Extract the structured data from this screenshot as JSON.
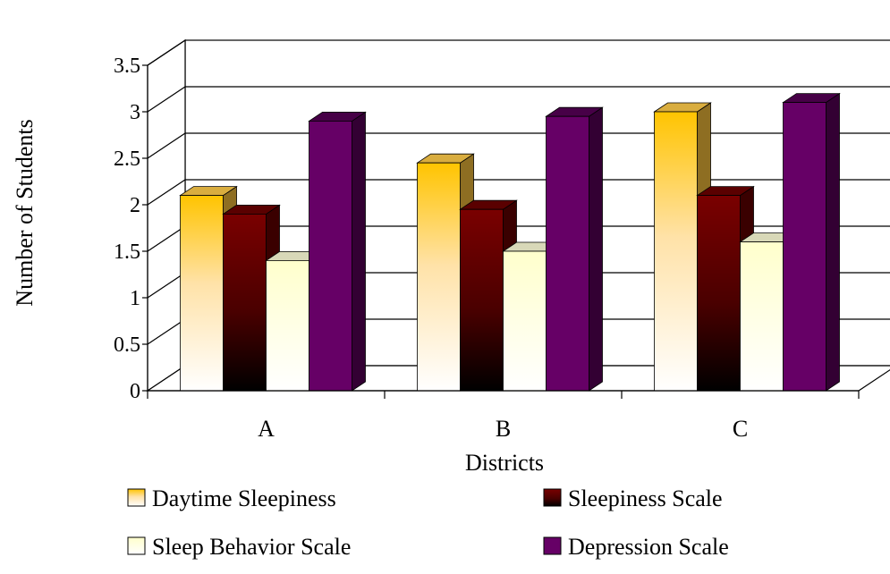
{
  "chart_data": {
    "type": "bar",
    "title": "",
    "xlabel": "Districts",
    "ylabel": "Number of Students",
    "categories": [
      "A",
      "B",
      "C"
    ],
    "ylim": [
      0,
      3.5
    ],
    "yticks": [
      0,
      0.5,
      1,
      1.5,
      2,
      2.5,
      3,
      3.5
    ],
    "ytick_labels": [
      "0",
      "0.5",
      "1",
      "1.5",
      "2",
      "2.5",
      "3",
      "3.5"
    ],
    "grid": true,
    "three_d": true,
    "legend_position": "bottom",
    "series": [
      {
        "name": "Daytime Sleepiness",
        "values": [
          2.1,
          2.45,
          3.0
        ],
        "color": "#ffcc22",
        "style": "gold-gradient"
      },
      {
        "name": "Sleepiness Scale",
        "values": [
          1.9,
          1.95,
          2.1
        ],
        "color": "#8b0000",
        "style": "maroon-gradient"
      },
      {
        "name": "Sleep Behavior Scale",
        "values": [
          1.4,
          1.5,
          1.6
        ],
        "color": "#ffffcc",
        "style": "cream-gradient"
      },
      {
        "name": "Depression Scale",
        "values": [
          2.9,
          2.95,
          3.1
        ],
        "color": "#660066",
        "style": "purple"
      }
    ]
  }
}
